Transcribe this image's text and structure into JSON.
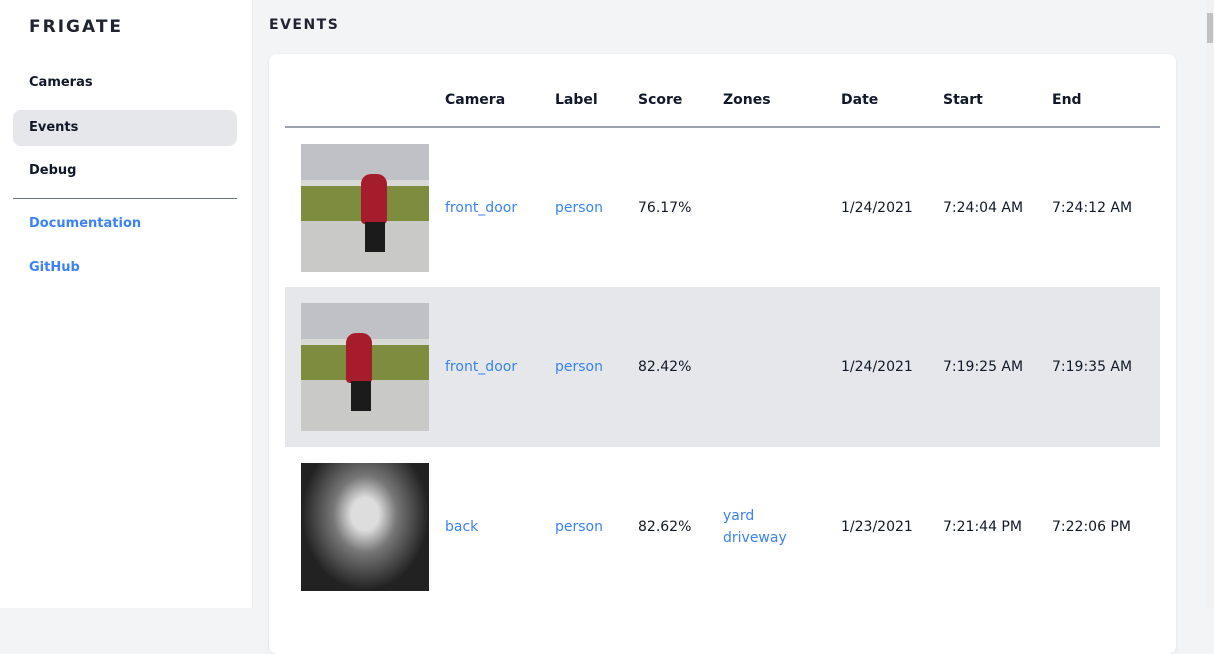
{
  "sidebar": {
    "brand": "FRIGATE",
    "items": [
      {
        "label": "Cameras"
      },
      {
        "label": "Events",
        "active": true
      },
      {
        "label": "Debug"
      }
    ],
    "links": [
      {
        "label": "Documentation"
      },
      {
        "label": "GitHub"
      }
    ]
  },
  "page": {
    "title": "EVENTS"
  },
  "table": {
    "headers": [
      "",
      "Camera",
      "Label",
      "Score",
      "Zones",
      "Date",
      "Start",
      "End"
    ],
    "rows": [
      {
        "camera": "front_door",
        "label": "person",
        "score": "76.17%",
        "zones": [
          "",
          ""
        ],
        "date": "1/24/2021",
        "start": "7:24:04 AM",
        "end": "7:24:12 AM"
      },
      {
        "camera": "front_door",
        "label": "person",
        "score": "82.42%",
        "zones": [
          "",
          ""
        ],
        "date": "1/24/2021",
        "start": "7:19:25 AM",
        "end": "7:19:35 AM"
      },
      {
        "camera": "back",
        "label": "person",
        "score": "82.62%",
        "zones": [
          "yard",
          "driveway"
        ],
        "date": "1/23/2021",
        "start": "7:21:44 PM",
        "end": "7:22:06 PM"
      }
    ]
  },
  "colors": {
    "accent": "#3b82f6",
    "active_bg": "#e5e7eb"
  }
}
